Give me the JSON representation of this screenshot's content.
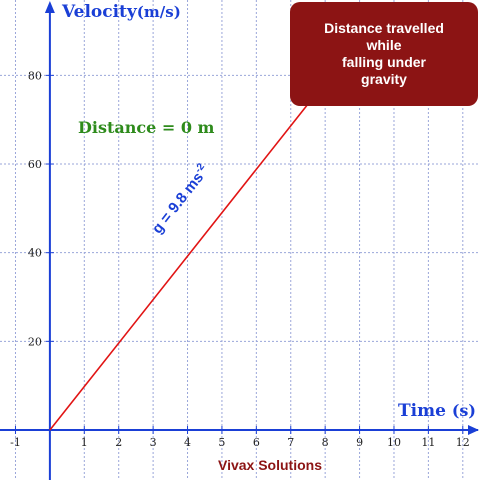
{
  "chart_data": {
    "type": "line",
    "xlabel": "Time",
    "xlabel_unit": "(s)",
    "ylabel": "Velocity",
    "ylabel_unit": "(m/s)",
    "x_ticks": [
      -1,
      1,
      2,
      3,
      4,
      5,
      6,
      7,
      8,
      9,
      10,
      11,
      12
    ],
    "y_ticks": [
      20,
      40,
      60,
      80
    ],
    "xlim": [
      -1.45,
      12.5
    ],
    "ylim": [
      0,
      97
    ],
    "grid": true,
    "series": [
      {
        "x": [
          0,
          7.6
        ],
        "y": [
          0,
          74.5
        ],
        "color": "#e11414"
      }
    ]
  },
  "annotations": {
    "distance_label": "Distance = 0 m",
    "gravity_label": "g = 9.8 ms",
    "gravity_exponent": "-2"
  },
  "infobox": {
    "line1": "Distance travelled",
    "line2": "while",
    "line3": "falling under",
    "line4": "gravity"
  },
  "credit": "Vivax Solutions",
  "colors": {
    "axis": "#1a3fd6",
    "grid": "#9aa6d9",
    "line": "#e11414",
    "infobox": "#8c1414",
    "distance": "#2e8b1c"
  }
}
